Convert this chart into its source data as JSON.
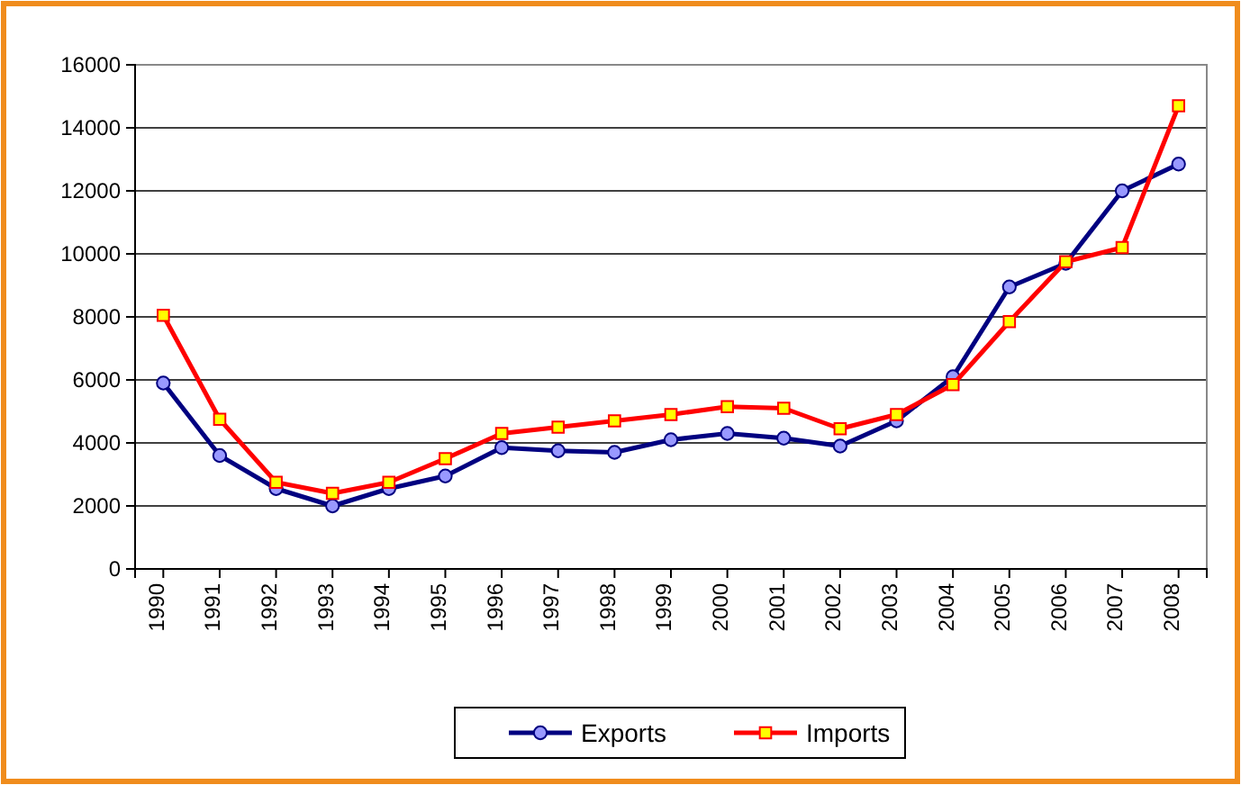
{
  "chart_data": {
    "type": "line",
    "categories": [
      "1990",
      "1991",
      "1992",
      "1993",
      "1994",
      "1995",
      "1996",
      "1997",
      "1998",
      "1999",
      "2000",
      "2001",
      "2002",
      "2003",
      "2004",
      "2005",
      "2006",
      "2007",
      "2008"
    ],
    "series": [
      {
        "name": "Exports",
        "color": "#000080",
        "marker": "circle",
        "values": [
          5900,
          3600,
          2550,
          2000,
          2550,
          2950,
          3850,
          3750,
          3700,
          4100,
          4300,
          4150,
          3900,
          4700,
          6100,
          8950,
          9700,
          12000,
          12850
        ]
      },
      {
        "name": "Imports",
        "color": "#ff0000",
        "marker": "square",
        "values": [
          8050,
          4750,
          2750,
          2400,
          2750,
          3500,
          4300,
          4500,
          4700,
          4900,
          5150,
          5100,
          4450,
          4900,
          5850,
          7850,
          9750,
          10200,
          14700
        ]
      }
    ],
    "ylim": [
      0,
      16000
    ],
    "yticks": [
      0,
      2000,
      4000,
      6000,
      8000,
      10000,
      12000,
      14000,
      16000
    ],
    "grid": "y",
    "legend": "bottom"
  }
}
